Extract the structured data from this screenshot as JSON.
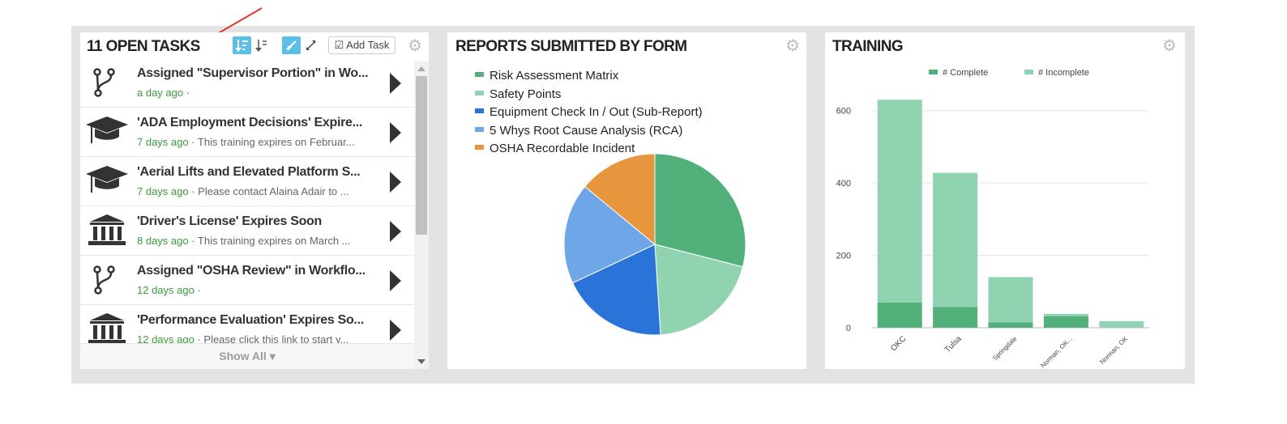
{
  "tasks_panel": {
    "title": "11 OPEN TASKS",
    "add_task_label": "Add Task",
    "show_all_label": "Show All ▾",
    "tasks": [
      {
        "icon": "workflow-icon",
        "title": "Assigned \"Supervisor Portion\" in Wo...",
        "time": "a day ago",
        "detail": " ·"
      },
      {
        "icon": "graduation-cap-icon",
        "title": "'ADA Employment Decisions' Expire...",
        "time": "7 days ago",
        "detail": " · This training expires on Februar..."
      },
      {
        "icon": "graduation-cap-icon",
        "title": "'Aerial Lifts and Elevated Platform S...",
        "time": "7 days ago",
        "detail": " · Please contact Alaina Adair to ..."
      },
      {
        "icon": "institution-icon",
        "title": "'Driver's License' Expires Soon",
        "time": "8 days ago",
        "detail": " · This training expires on March ..."
      },
      {
        "icon": "workflow-icon",
        "title": "Assigned \"OSHA Review\" in Workflo...",
        "time": "12 days ago",
        "detail": " ·"
      },
      {
        "icon": "institution-icon",
        "title": "'Performance Evaluation' Expires So...",
        "time": "12 days ago",
        "detail": " · Please click this link to start y..."
      }
    ]
  },
  "reports_panel": {
    "title": "REPORTS SUBMITTED BY FORM",
    "legend": [
      {
        "label": "Risk Assessment Matrix",
        "color": "#52b07a"
      },
      {
        "label": "Safety Points",
        "color": "#90d3b0"
      },
      {
        "label": "Equipment Check In / Out (Sub-Report)",
        "color": "#2a73d9"
      },
      {
        "label": "5 Whys Root Cause Analysis (RCA)",
        "color": "#6ea6e8"
      },
      {
        "label": "OSHA Recordable Incident",
        "color": "#e8963e"
      }
    ]
  },
  "training_panel": {
    "title": "TRAINING",
    "legend_complete": "# Complete",
    "legend_incomplete": "# Incomplete",
    "color_complete": "#52b07a",
    "color_incomplete": "#90d3b0"
  },
  "chart_data": [
    {
      "type": "pie",
      "title": "REPORTS SUBMITTED BY FORM",
      "categories": [
        "Risk Assessment Matrix",
        "Safety Points",
        "Equipment Check In / Out (Sub-Report)",
        "5 Whys Root Cause Analysis (RCA)",
        "OSHA Recordable Incident"
      ],
      "values": [
        29,
        20,
        19,
        18,
        14
      ]
    },
    {
      "type": "bar",
      "stacked": true,
      "title": "TRAINING",
      "categories": [
        "OKC",
        "Tulsa",
        "Springdale",
        "Norman, OK...",
        "Norman, OK"
      ],
      "series": [
        {
          "name": "# Complete",
          "values": [
            70,
            57,
            15,
            32,
            0
          ]
        },
        {
          "name": "# Incomplete",
          "values": [
            560,
            371,
            125,
            6,
            18
          ]
        }
      ],
      "ylim": [
        0,
        700
      ],
      "yticks": [
        0,
        200,
        400,
        600
      ],
      "legend_position": "top"
    }
  ]
}
